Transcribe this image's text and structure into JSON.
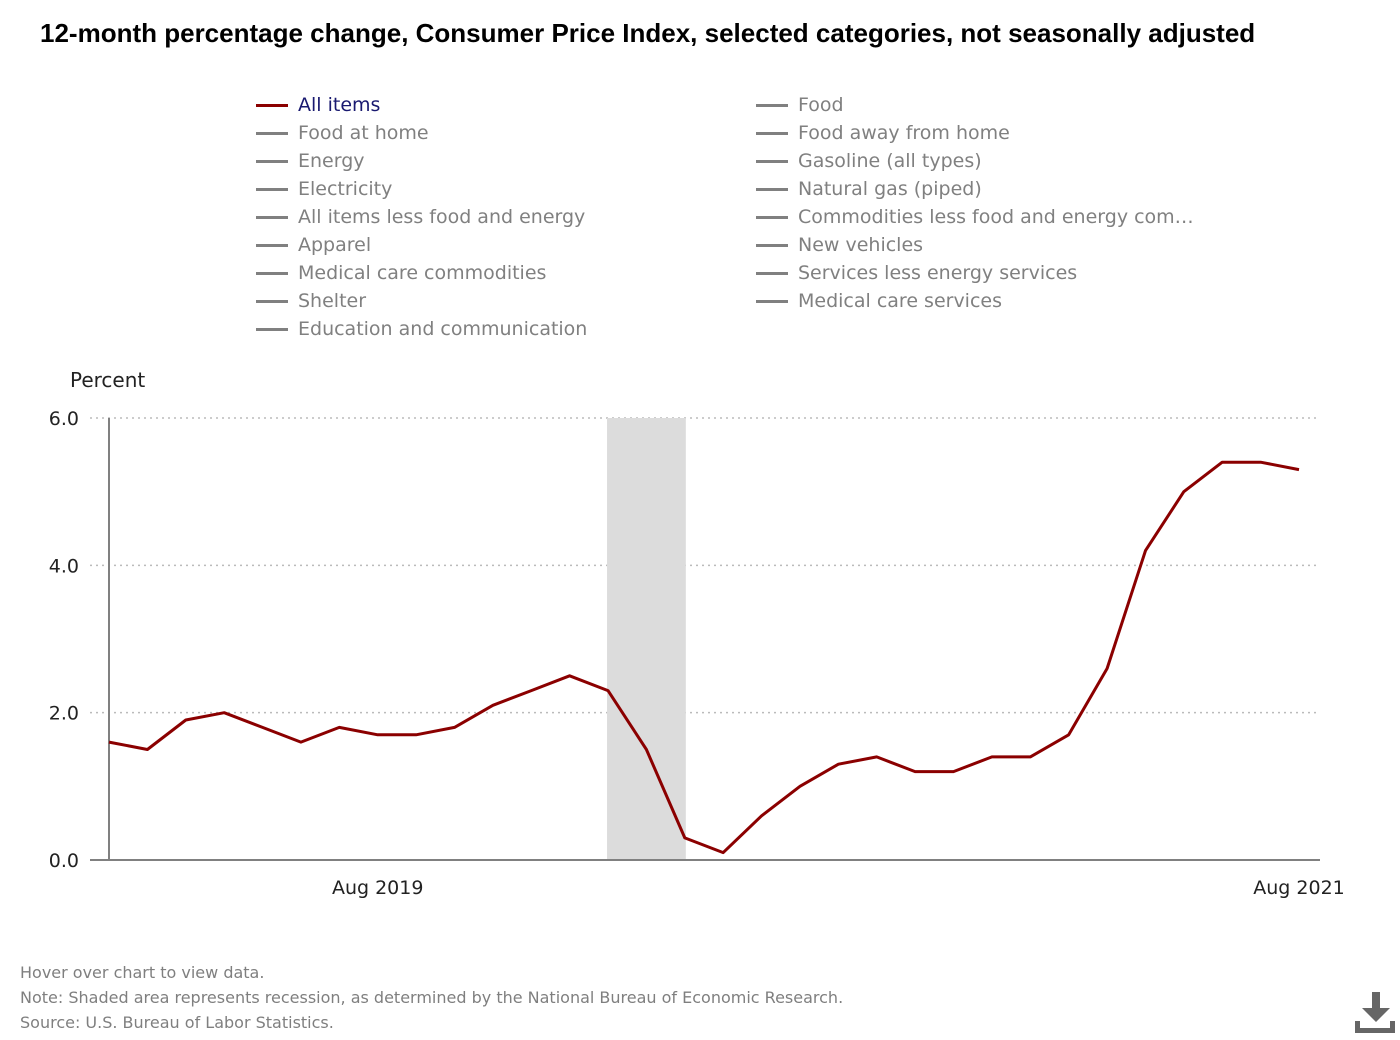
{
  "title": "12-month percentage change, Consumer Price Index, selected categories, not seasonally adjusted",
  "legend": [
    {
      "label": "All items",
      "active": true
    },
    {
      "label": "Food at home",
      "active": false
    },
    {
      "label": "Energy",
      "active": false
    },
    {
      "label": "Electricity",
      "active": false
    },
    {
      "label": "All items less food and energy",
      "active": false
    },
    {
      "label": "Apparel",
      "active": false
    },
    {
      "label": "Medical care commodities",
      "active": false
    },
    {
      "label": "Shelter",
      "active": false
    },
    {
      "label": "Education and communication",
      "active": false
    },
    {
      "label": "Food",
      "active": false
    },
    {
      "label": "Food away from home",
      "active": false
    },
    {
      "label": "Gasoline (all types)",
      "active": false
    },
    {
      "label": "Natural gas (piped)",
      "active": false
    },
    {
      "label": "Commodities less food and energy com…",
      "active": false
    },
    {
      "label": "New vehicles",
      "active": false
    },
    {
      "label": "Services less energy services",
      "active": false
    },
    {
      "label": "Medical care services",
      "active": false
    }
  ],
  "colors": {
    "series": "#8b0000",
    "legend_active_text": "#191970",
    "legend_inactive": "#808080",
    "recession": "#dcdcdc",
    "axis": "#808080",
    "grid": "#bbbbbb"
  },
  "chart_data": {
    "type": "line",
    "title": "12-month percentage change, Consumer Price Index, selected categories, not seasonally adjusted",
    "ylabel": "Percent",
    "xlabel": "",
    "ylim": [
      0,
      6
    ],
    "yticks": [
      "0.0",
      "2.0",
      "4.0",
      "6.0"
    ],
    "xticks": [
      {
        "index": 7,
        "label": "Aug 2019"
      },
      {
        "index": 31,
        "label": "Aug 2021"
      }
    ],
    "grid": true,
    "x": [
      "Jan 2019",
      "Feb 2019",
      "Mar 2019",
      "Apr 2019",
      "May 2019",
      "Jun 2019",
      "Jul 2019",
      "Aug 2019",
      "Sep 2019",
      "Oct 2019",
      "Nov 2019",
      "Dec 2019",
      "Jan 2020",
      "Feb 2020",
      "Mar 2020",
      "Apr 2020",
      "May 2020",
      "Jun 2020",
      "Jul 2020",
      "Aug 2020",
      "Sep 2020",
      "Oct 2020",
      "Nov 2020",
      "Dec 2020",
      "Jan 2021",
      "Feb 2021",
      "Mar 2021",
      "Apr 2021",
      "May 2021",
      "Jun 2021",
      "Jul 2021",
      "Aug 2021"
    ],
    "series": [
      {
        "name": "All items",
        "values": [
          1.6,
          1.5,
          1.9,
          2.0,
          1.8,
          1.6,
          1.8,
          1.7,
          1.7,
          1.8,
          2.1,
          2.3,
          2.5,
          2.3,
          1.5,
          0.3,
          0.1,
          0.6,
          1.0,
          1.3,
          1.4,
          1.2,
          1.2,
          1.4,
          1.4,
          1.7,
          2.6,
          4.2,
          5.0,
          5.4,
          5.4,
          5.3
        ]
      }
    ],
    "recession": {
      "start": "Feb 2020",
      "end": "Apr 2020"
    }
  },
  "footnotes": {
    "hover": "Hover over chart to view data.",
    "note": "Note: Shaded area represents recession, as determined by the National Bureau of Economic Research.",
    "source": "Source: U.S. Bureau of Labor Statistics."
  },
  "icons": {
    "download": "download-icon"
  }
}
